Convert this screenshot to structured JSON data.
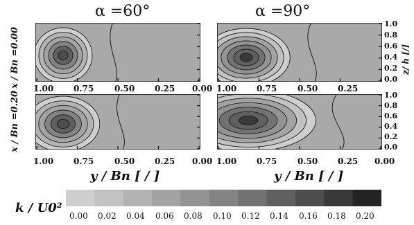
{
  "figure": {
    "columns": [
      {
        "title": "α =60°"
      },
      {
        "title": "α =90°"
      }
    ],
    "rows": [
      {
        "label": "x / Bn =0.00"
      },
      {
        "label": "x / Bn =0.20"
      }
    ],
    "x_ticks": [
      "1.00",
      "0.75",
      "0.50",
      "0.25",
      "0.00"
    ],
    "x_axis_title": "y / Bn [ / ]",
    "z_ticks": [
      "1.0",
      "0.8",
      "0.6",
      "0.4",
      "0.2",
      "0.0"
    ],
    "z_axis_title": "z/ h [/]",
    "colorbar": {
      "title": "k / U0²",
      "ticks": [
        "0.00",
        "0.02",
        "0.04",
        "0.06",
        "0.08",
        "0.10",
        "0.12",
        "0.14",
        "0.16",
        "0.18",
        "0.20"
      ],
      "colors": [
        "#cfcfcf",
        "#c2c2c2",
        "#b3b3b3",
        "#a3a3a3",
        "#939393",
        "#838383",
        "#727272",
        "#606060",
        "#4d4d4d",
        "#393939",
        "#242424"
      ]
    }
  },
  "colors": {
    "background": "#ffffff",
    "panel_fill": "#a9a9a9",
    "contour_line": "#1c1c1c"
  }
}
